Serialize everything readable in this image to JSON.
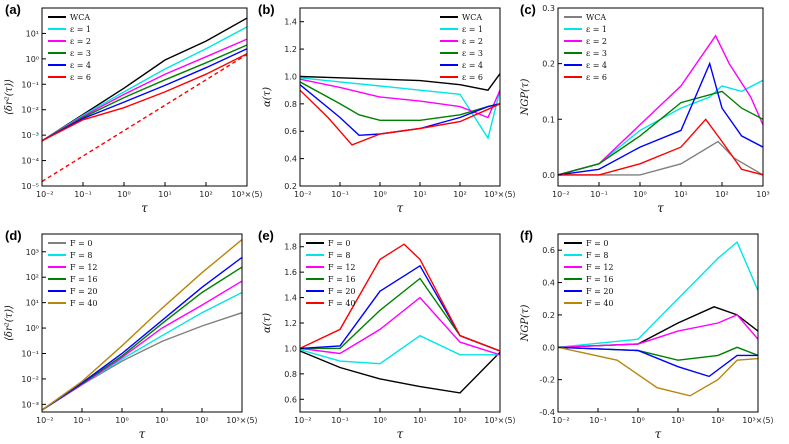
{
  "chart_data": [
    {
      "id": "a",
      "label": "(a)",
      "type": "line",
      "xscale": "log",
      "yscale": "log",
      "xlim": [
        0.01,
        1000
      ],
      "ylim": [
        1e-05,
        100
      ],
      "xticks": [
        0.01,
        0.1,
        1,
        10,
        100,
        1000
      ],
      "xtick_labels": [
        "10⁻²",
        "10⁻¹",
        "10⁰",
        "10¹",
        "10²",
        "10³×⟨5⟩"
      ],
      "yticks": [
        1e-05,
        0.0001,
        0.001,
        0.01,
        0.1,
        1,
        10
      ],
      "ytick_labels": [
        "10⁻⁵",
        "10⁻⁴",
        "10⁻³",
        "10⁻²",
        "10⁻¹",
        "10⁰",
        "10¹"
      ],
      "xlabel": "τ",
      "ylabel": "⟨δr²(τ)⟩",
      "legend_pos": "top-left",
      "series": [
        {
          "name": "WCA",
          "color": "#000000",
          "x": [
            0.01,
            0.1,
            1,
            10,
            100,
            1000
          ],
          "y": [
            0.0006,
            0.0065,
            0.07,
            0.9,
            5,
            40
          ]
        },
        {
          "name": "ε = 1",
          "color": "#00e5e5",
          "x": [
            0.01,
            0.1,
            1,
            10,
            100,
            1000
          ],
          "y": [
            0.0006,
            0.006,
            0.05,
            0.4,
            2.5,
            18
          ]
        },
        {
          "name": "ε = 2",
          "color": "#ff00ff",
          "x": [
            0.01,
            0.1,
            1,
            10,
            100,
            1000
          ],
          "y": [
            0.0006,
            0.0055,
            0.04,
            0.25,
            1.2,
            6
          ]
        },
        {
          "name": "ε = 3",
          "color": "#008000",
          "x": [
            0.01,
            0.1,
            1,
            10,
            100,
            1000
          ],
          "y": [
            0.0006,
            0.005,
            0.03,
            0.15,
            0.7,
            3.5
          ]
        },
        {
          "name": "ε = 4",
          "color": "#0000ff",
          "x": [
            0.01,
            0.1,
            1,
            10,
            100,
            1000
          ],
          "y": [
            0.0006,
            0.0045,
            0.02,
            0.09,
            0.45,
            2.5
          ]
        },
        {
          "name": "ε = 6",
          "color": "#ff0000",
          "x": [
            0.01,
            0.1,
            1,
            10,
            100,
            1000
          ],
          "y": [
            0.0006,
            0.004,
            0.012,
            0.05,
            0.25,
            1.6
          ]
        },
        {
          "name": "",
          "color": "#ff0000",
          "dashed": true,
          "x": [
            0.01,
            1000
          ],
          "y": [
            1.5e-05,
            1.5
          ]
        }
      ]
    },
    {
      "id": "b",
      "label": "(b)",
      "type": "line",
      "xscale": "log",
      "yscale": "linear",
      "xlim": [
        0.01,
        1000
      ],
      "ylim": [
        0.2,
        1.5
      ],
      "xticks": [
        0.01,
        0.1,
        1,
        10,
        100,
        1000
      ],
      "xtick_labels": [
        "10⁻²",
        "10⁻¹",
        "10⁰",
        "10¹",
        "10²",
        "10³×⟨5⟩"
      ],
      "yticks": [
        0.2,
        0.4,
        0.6,
        0.8,
        1.0,
        1.2,
        1.4
      ],
      "ytick_labels": [
        "0.2",
        "0.4",
        "0.6",
        "0.8",
        "1.0",
        "1.2",
        "1.4"
      ],
      "xlabel": "τ",
      "ylabel": "α(τ)",
      "legend_pos": "top-right",
      "series": [
        {
          "name": "WCA",
          "color": "#000000",
          "x": [
            0.01,
            0.1,
            1,
            10,
            100,
            500,
            1000
          ],
          "y": [
            1.0,
            0.99,
            0.98,
            0.97,
            0.94,
            0.9,
            1.02
          ]
        },
        {
          "name": "ε = 1",
          "color": "#00e5e5",
          "x": [
            0.01,
            0.1,
            1,
            10,
            100,
            500,
            1000
          ],
          "y": [
            0.99,
            0.96,
            0.93,
            0.9,
            0.87,
            0.55,
            0.9
          ]
        },
        {
          "name": "ε = 2",
          "color": "#ff00ff",
          "x": [
            0.01,
            0.1,
            1,
            10,
            100,
            500,
            1000
          ],
          "y": [
            0.98,
            0.92,
            0.85,
            0.82,
            0.78,
            0.7,
            0.9
          ]
        },
        {
          "name": "ε = 3",
          "color": "#008000",
          "x": [
            0.01,
            0.1,
            0.3,
            1,
            10,
            100,
            500,
            1000
          ],
          "y": [
            0.96,
            0.8,
            0.72,
            0.68,
            0.68,
            0.72,
            0.78,
            0.8
          ]
        },
        {
          "name": "ε = 4",
          "color": "#0000ff",
          "x": [
            0.01,
            0.1,
            0.3,
            1,
            10,
            100,
            500,
            1000
          ],
          "y": [
            0.94,
            0.7,
            0.57,
            0.58,
            0.62,
            0.7,
            0.78,
            0.8
          ]
        },
        {
          "name": "ε = 6",
          "color": "#ff0000",
          "x": [
            0.01,
            0.05,
            0.2,
            1,
            10,
            100,
            500,
            1000
          ],
          "y": [
            0.9,
            0.7,
            0.5,
            0.58,
            0.62,
            0.67,
            0.76,
            0.8
          ]
        }
      ]
    },
    {
      "id": "c",
      "label": "(c)",
      "type": "line",
      "xscale": "log",
      "yscale": "linear",
      "xlim": [
        0.01,
        1000
      ],
      "ylim": [
        -0.02,
        0.3
      ],
      "xticks": [
        0.01,
        0.1,
        1,
        10,
        100,
        1000
      ],
      "xtick_labels": [
        "10⁻²",
        "10⁻¹",
        "10⁰",
        "10¹",
        "10²",
        "10³"
      ],
      "yticks": [
        0,
        0.1,
        0.2,
        0.3
      ],
      "ytick_labels": [
        "0.0",
        "0.1",
        "0.2",
        "0.3"
      ],
      "xlabel": "τ",
      "ylabel": "NGP(τ)",
      "legend_pos": "top-left",
      "series": [
        {
          "name": "WCA",
          "color": "#808080",
          "x": [
            0.01,
            1,
            10,
            80,
            200,
            1000
          ],
          "y": [
            0,
            0.0,
            0.02,
            0.06,
            0.03,
            0.0
          ]
        },
        {
          "name": "ε = 1",
          "color": "#00e5e5",
          "x": [
            0.01,
            0.1,
            1,
            10,
            50,
            100,
            300,
            1000
          ],
          "y": [
            0,
            0.02,
            0.08,
            0.12,
            0.14,
            0.16,
            0.15,
            0.17
          ]
        },
        {
          "name": "ε = 2",
          "color": "#ff00ff",
          "x": [
            0.01,
            0.1,
            1,
            10,
            70,
            150,
            500,
            1000
          ],
          "y": [
            0,
            0.02,
            0.09,
            0.16,
            0.25,
            0.2,
            0.14,
            0.09
          ]
        },
        {
          "name": "ε = 3",
          "color": "#008000",
          "x": [
            0.01,
            0.1,
            1,
            10,
            100,
            300,
            1000
          ],
          "y": [
            0,
            0.02,
            0.07,
            0.13,
            0.15,
            0.12,
            0.1
          ]
        },
        {
          "name": "ε = 4",
          "color": "#0000ff",
          "x": [
            0.01,
            0.1,
            1,
            10,
            50,
            100,
            300,
            1000
          ],
          "y": [
            0,
            0.01,
            0.05,
            0.08,
            0.2,
            0.12,
            0.07,
            0.05
          ]
        },
        {
          "name": "ε = 6",
          "color": "#ff0000",
          "x": [
            0.01,
            0.1,
            1,
            10,
            40,
            100,
            300,
            1000
          ],
          "y": [
            0,
            0.0,
            0.02,
            0.05,
            0.1,
            0.06,
            0.01,
            0.0
          ]
        }
      ]
    },
    {
      "id": "d",
      "label": "(d)",
      "type": "line",
      "xscale": "log",
      "yscale": "log",
      "xlim": [
        0.01,
        1000
      ],
      "ylim": [
        0.0005,
        5000
      ],
      "xticks": [
        0.01,
        0.1,
        1,
        10,
        100,
        1000
      ],
      "xtick_labels": [
        "10⁻²",
        "10⁻¹",
        "10⁰",
        "10¹",
        "10²",
        "10³×⟨5⟩"
      ],
      "yticks": [
        0.001,
        0.01,
        0.1,
        1,
        10,
        100,
        1000
      ],
      "ytick_labels": [
        "10⁻³",
        "10⁻²",
        "10⁻¹",
        "10⁰",
        "10¹",
        "10²",
        "10³"
      ],
      "xlabel": "τ",
      "ylabel": "⟨δr²(τ)⟩",
      "legend_pos": "top-left",
      "series": [
        {
          "name": "F = 0",
          "color": "#808080",
          "x": [
            0.01,
            0.1,
            1,
            10,
            100,
            1000
          ],
          "y": [
            0.0006,
            0.006,
            0.05,
            0.3,
            1.2,
            4
          ]
        },
        {
          "name": "F = 8",
          "color": "#00e5e5",
          "x": [
            0.01,
            0.1,
            1,
            10,
            100,
            1000
          ],
          "y": [
            0.0006,
            0.006,
            0.06,
            0.5,
            4,
            25
          ]
        },
        {
          "name": "F = 12",
          "color": "#ff00ff",
          "x": [
            0.01,
            0.1,
            1,
            10,
            100,
            1000
          ],
          "y": [
            0.0006,
            0.006,
            0.07,
            1,
            8,
            70
          ]
        },
        {
          "name": "F = 16",
          "color": "#008000",
          "x": [
            0.01,
            0.1,
            1,
            10,
            100,
            1000
          ],
          "y": [
            0.0006,
            0.0065,
            0.08,
            1.5,
            25,
            250
          ]
        },
        {
          "name": "F = 20",
          "color": "#0000ff",
          "x": [
            0.01,
            0.1,
            1,
            10,
            100,
            1000
          ],
          "y": [
            0.0006,
            0.007,
            0.1,
            2,
            40,
            600
          ]
        },
        {
          "name": "F = 40",
          "color": "#b8860b",
          "x": [
            0.01,
            0.1,
            1,
            10,
            100,
            1000
          ],
          "y": [
            0.0006,
            0.008,
            0.2,
            6,
            150,
            3000
          ]
        }
      ]
    },
    {
      "id": "e",
      "label": "(e)",
      "type": "line",
      "xscale": "log",
      "yscale": "linear",
      "xlim": [
        0.01,
        1000
      ],
      "ylim": [
        0.5,
        1.9
      ],
      "xticks": [
        0.01,
        0.1,
        1,
        10,
        100,
        1000
      ],
      "xtick_labels": [
        "10⁻²",
        "10⁻¹",
        "10⁰",
        "10¹",
        "10²",
        "10³×⟨5⟩"
      ],
      "yticks": [
        0.6,
        0.8,
        1.0,
        1.2,
        1.4,
        1.6,
        1.8
      ],
      "ytick_labels": [
        "0.6",
        "0.8",
        "1.0",
        "1.2",
        "1.4",
        "1.6",
        "1.8"
      ],
      "xlabel": "τ",
      "ylabel": "α(τ)",
      "legend_pos": "top-left",
      "series": [
        {
          "name": "F = 0",
          "color": "#000000",
          "x": [
            0.01,
            0.1,
            1,
            10,
            100,
            1000
          ],
          "y": [
            0.98,
            0.85,
            0.76,
            0.7,
            0.65,
            0.97
          ]
        },
        {
          "name": "F = 8",
          "color": "#00e5e5",
          "x": [
            0.01,
            0.1,
            1,
            10,
            100,
            1000
          ],
          "y": [
            0.99,
            0.9,
            0.88,
            1.1,
            0.95,
            0.95
          ]
        },
        {
          "name": "F = 12",
          "color": "#ff00ff",
          "x": [
            0.01,
            0.1,
            1,
            10,
            100,
            1000
          ],
          "y": [
            1.0,
            0.96,
            1.15,
            1.4,
            1.05,
            0.95
          ]
        },
        {
          "name": "F = 16",
          "color": "#008000",
          "x": [
            0.01,
            0.1,
            1,
            10,
            100,
            1000
          ],
          "y": [
            1.0,
            1.0,
            1.3,
            1.55,
            1.1,
            0.98
          ]
        },
        {
          "name": "F = 20",
          "color": "#0000ff",
          "x": [
            0.01,
            0.1,
            1,
            10,
            100,
            1000
          ],
          "y": [
            1.0,
            1.02,
            1.45,
            1.65,
            1.1,
            0.98
          ]
        },
        {
          "name": "F = 40",
          "color": "#ff0000",
          "x": [
            0.01,
            0.1,
            1,
            4,
            10,
            100,
            1000
          ],
          "y": [
            1.0,
            1.15,
            1.7,
            1.82,
            1.7,
            1.1,
            0.98
          ]
        }
      ]
    },
    {
      "id": "f",
      "label": "(f)",
      "type": "line",
      "xscale": "log",
      "yscale": "linear",
      "xlim": [
        0.01,
        1000
      ],
      "ylim": [
        -0.4,
        0.7
      ],
      "xticks": [
        0.01,
        0.1,
        1,
        10,
        100,
        1000
      ],
      "xtick_labels": [
        "10⁻²",
        "10⁻¹",
        "10⁰",
        "10¹",
        "10²",
        "10³×⟨5⟩"
      ],
      "yticks": [
        -0.4,
        -0.2,
        0,
        0.2,
        0.4,
        0.6
      ],
      "ytick_labels": [
        "-0.4",
        "-0.2",
        "0.0",
        "0.2",
        "0.4",
        "0.6"
      ],
      "xlabel": "τ",
      "ylabel": "NGP(τ)",
      "legend_pos": "top-left",
      "series": [
        {
          "name": "F = 0",
          "color": "#000000",
          "x": [
            0.01,
            1,
            10,
            80,
            300,
            1000
          ],
          "y": [
            0,
            0.02,
            0.15,
            0.25,
            0.2,
            0.1
          ]
        },
        {
          "name": "F = 8",
          "color": "#00e5e5",
          "x": [
            0.01,
            1,
            10,
            100,
            300,
            1000
          ],
          "y": [
            0,
            0.05,
            0.3,
            0.55,
            0.65,
            0.35
          ]
        },
        {
          "name": "F = 12",
          "color": "#ff00ff",
          "x": [
            0.01,
            1,
            10,
            100,
            300,
            1000
          ],
          "y": [
            0,
            0.02,
            0.1,
            0.15,
            0.2,
            0.05
          ]
        },
        {
          "name": "F = 16",
          "color": "#008000",
          "x": [
            0.01,
            1,
            10,
            100,
            300,
            1000
          ],
          "y": [
            0,
            -0.02,
            -0.08,
            -0.05,
            0.0,
            -0.05
          ]
        },
        {
          "name": "F = 20",
          "color": "#0000ff",
          "x": [
            0.01,
            1,
            10,
            60,
            300,
            1000
          ],
          "y": [
            0,
            -0.02,
            -0.12,
            -0.18,
            -0.05,
            -0.05
          ]
        },
        {
          "name": "F = 40",
          "color": "#b8860b",
          "x": [
            0.01,
            0.3,
            3,
            20,
            100,
            300,
            1000
          ],
          "y": [
            0,
            -0.08,
            -0.25,
            -0.3,
            -0.2,
            -0.08,
            -0.07
          ]
        }
      ]
    }
  ]
}
